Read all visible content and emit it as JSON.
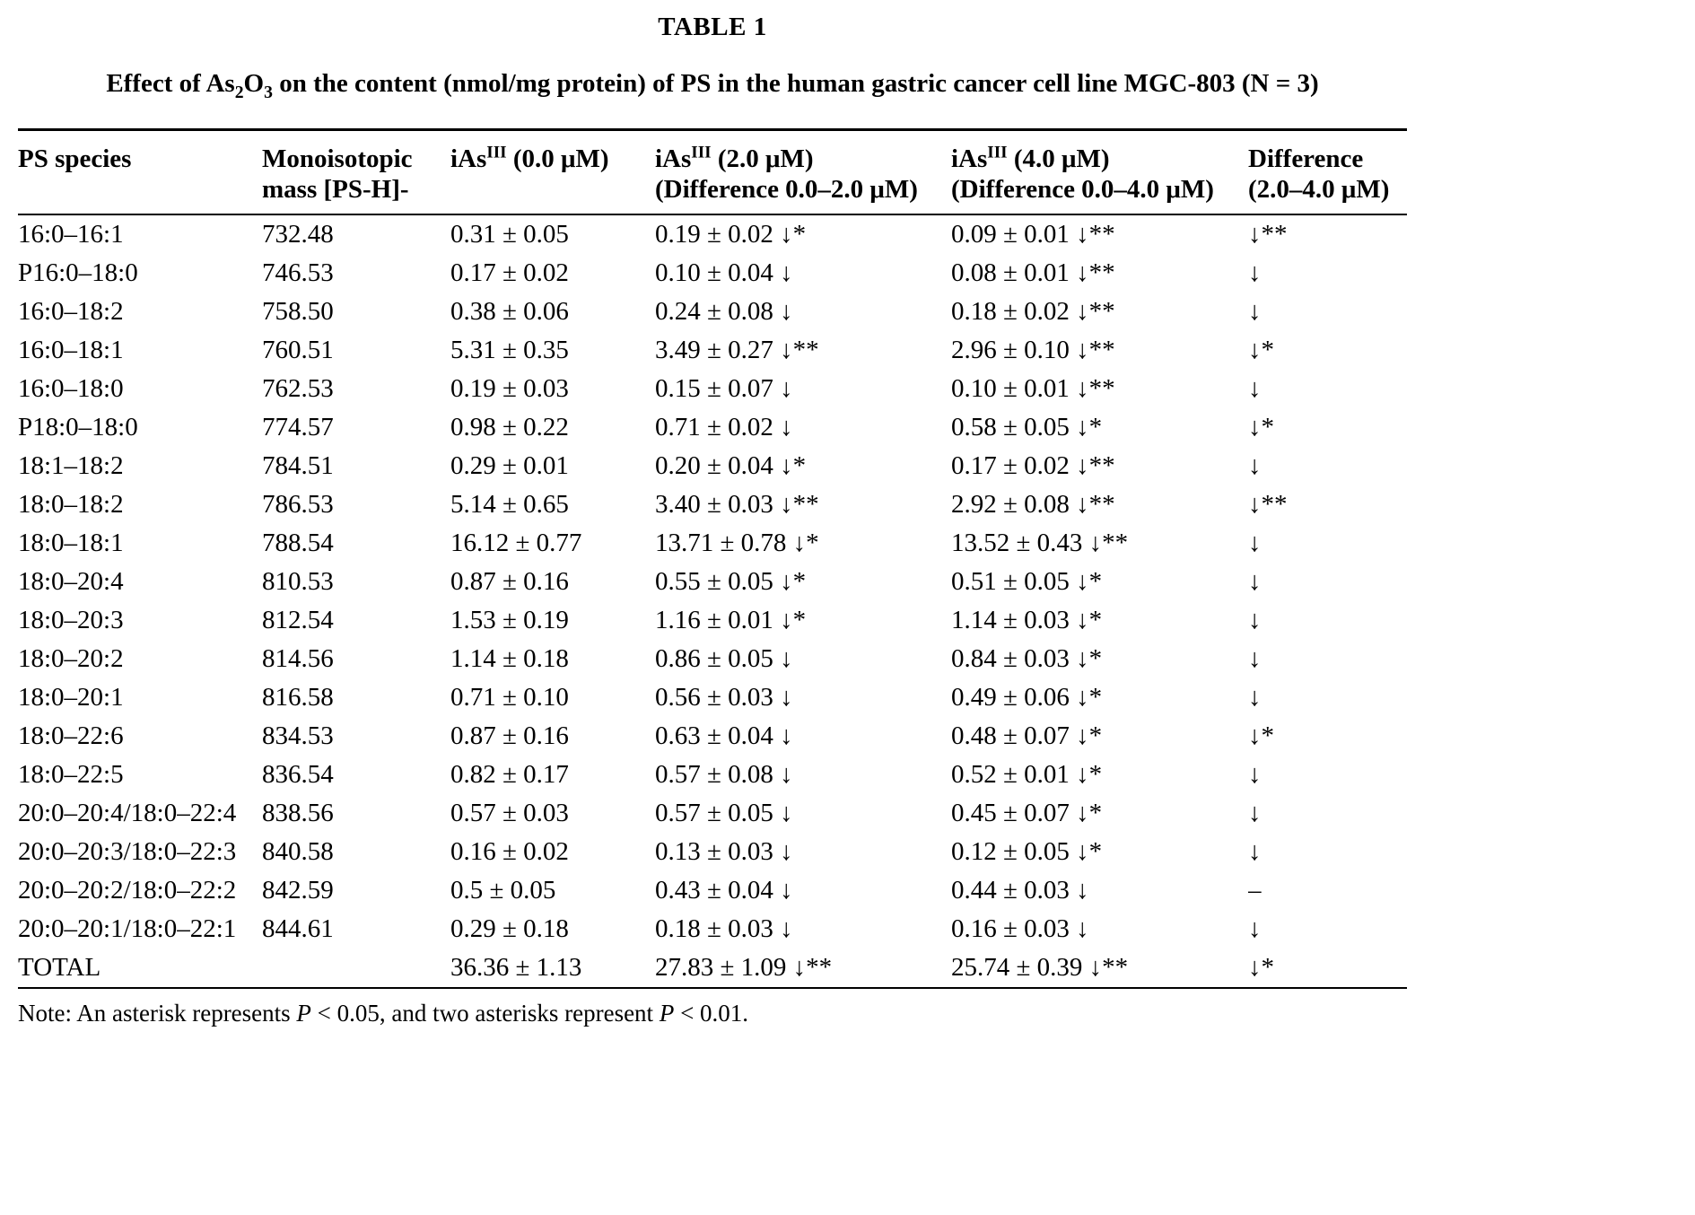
{
  "table": {
    "title": "TABLE 1",
    "subtitle": {
      "pre": "Effect of As",
      "sub1": "2",
      "mid": "O",
      "sub2": "3",
      "post": " on the content (nmol/mg protein) of PS in the human gastric cancer cell line MGC-803 (N = 3)"
    },
    "columns": [
      {
        "base": "PS species",
        "sup": "",
        "rest": "",
        "line2": ""
      },
      {
        "base": "Monoisotopic",
        "sup": "",
        "rest": "",
        "line2": "mass [PS-H]-"
      },
      {
        "base": "iAs",
        "sup": "III",
        "rest": " (0.0 μM)",
        "line2": ""
      },
      {
        "base": "iAs",
        "sup": "III",
        "rest": " (2.0 μM)",
        "line2": "(Difference 0.0–2.0 μM)"
      },
      {
        "base": "iAs",
        "sup": "III",
        "rest": " (4.0 μM)",
        "line2": "(Difference 0.0–4.0 μM)"
      },
      {
        "base": "Difference",
        "sup": "",
        "rest": "",
        "line2": "(2.0–4.0 μM)"
      }
    ],
    "col_keys": [
      "ps-species",
      "monoisotopic-mass",
      "ias-0um",
      "ias-2um",
      "ias-4um",
      "difference"
    ],
    "rows": [
      [
        "16:0–16:1",
        "732.48",
        "0.31 ± 0.05",
        "0.19 ± 0.02 ↓*",
        "0.09 ± 0.01 ↓**",
        "↓**"
      ],
      [
        "P16:0–18:0",
        "746.53",
        "0.17 ± 0.02",
        "0.10 ± 0.04 ↓",
        "0.08 ± 0.01 ↓**",
        "↓"
      ],
      [
        "16:0–18:2",
        "758.50",
        "0.38 ± 0.06",
        "0.24 ± 0.08 ↓",
        "0.18 ± 0.02 ↓**",
        "↓"
      ],
      [
        "16:0–18:1",
        "760.51",
        "5.31 ± 0.35",
        "3.49 ± 0.27 ↓**",
        "2.96 ± 0.10 ↓**",
        "↓*"
      ],
      [
        "16:0–18:0",
        "762.53",
        "0.19 ± 0.03",
        "0.15 ± 0.07 ↓",
        "0.10 ± 0.01 ↓**",
        "↓"
      ],
      [
        "P18:0–18:0",
        "774.57",
        "0.98 ± 0.22",
        "0.71 ± 0.02 ↓",
        "0.58 ± 0.05 ↓*",
        "↓*"
      ],
      [
        "18:1–18:2",
        "784.51",
        "0.29 ± 0.01",
        "0.20 ± 0.04 ↓*",
        "0.17 ± 0.02 ↓**",
        "↓"
      ],
      [
        "18:0–18:2",
        "786.53",
        "5.14 ± 0.65",
        "3.40 ± 0.03 ↓**",
        "2.92 ± 0.08 ↓**",
        "↓**"
      ],
      [
        "18:0–18:1",
        "788.54",
        "16.12 ± 0.77",
        "13.71 ± 0.78 ↓*",
        "13.52 ± 0.43 ↓**",
        "↓"
      ],
      [
        "18:0–20:4",
        "810.53",
        "0.87 ± 0.16",
        "0.55 ± 0.05 ↓*",
        "0.51 ± 0.05 ↓*",
        "↓"
      ],
      [
        "18:0–20:3",
        "812.54",
        "1.53 ± 0.19",
        "1.16 ± 0.01 ↓*",
        "1.14 ± 0.03 ↓*",
        "↓"
      ],
      [
        "18:0–20:2",
        "814.56",
        "1.14 ± 0.18",
        "0.86 ± 0.05 ↓",
        "0.84 ± 0.03 ↓*",
        "↓"
      ],
      [
        "18:0–20:1",
        "816.58",
        "0.71 ± 0.10",
        "0.56 ± 0.03 ↓",
        "0.49 ± 0.06 ↓*",
        "↓"
      ],
      [
        "18:0–22:6",
        "834.53",
        "0.87 ± 0.16",
        "0.63 ± 0.04 ↓",
        "0.48 ± 0.07 ↓*",
        "↓*"
      ],
      [
        "18:0–22:5",
        "836.54",
        "0.82 ± 0.17",
        "0.57 ± 0.08 ↓",
        "0.52 ± 0.01 ↓*",
        "↓"
      ],
      [
        "20:0–20:4/18:0–22:4",
        "838.56",
        "0.57 ± 0.03",
        "0.57 ± 0.05 ↓",
        "0.45 ± 0.07 ↓*",
        "↓"
      ],
      [
        "20:0–20:3/18:0–22:3",
        "840.58",
        "0.16 ± 0.02",
        "0.13 ± 0.03 ↓",
        "0.12 ± 0.05 ↓*",
        "↓"
      ],
      [
        "20:0–20:2/18:0–22:2",
        "842.59",
        "0.5 ± 0.05",
        "0.43 ± 0.04 ↓",
        "0.44 ± 0.03 ↓",
        "–"
      ],
      [
        "20:0–20:1/18:0–22:1",
        "844.61",
        "0.29 ± 0.18",
        "0.18 ± 0.03 ↓",
        "0.16 ± 0.03 ↓",
        "↓"
      ],
      [
        "TOTAL",
        "",
        "36.36 ± 1.13",
        "27.83 ± 1.09 ↓**",
        "25.74 ± 0.39 ↓**",
        "↓*"
      ]
    ]
  },
  "note": {
    "parts": {
      "p0": "Note: An asterisk represents ",
      "p1": "P",
      "p2": " < 0.05, and two asterisks represent ",
      "p3": "P",
      "p4": " < 0.01."
    }
  }
}
